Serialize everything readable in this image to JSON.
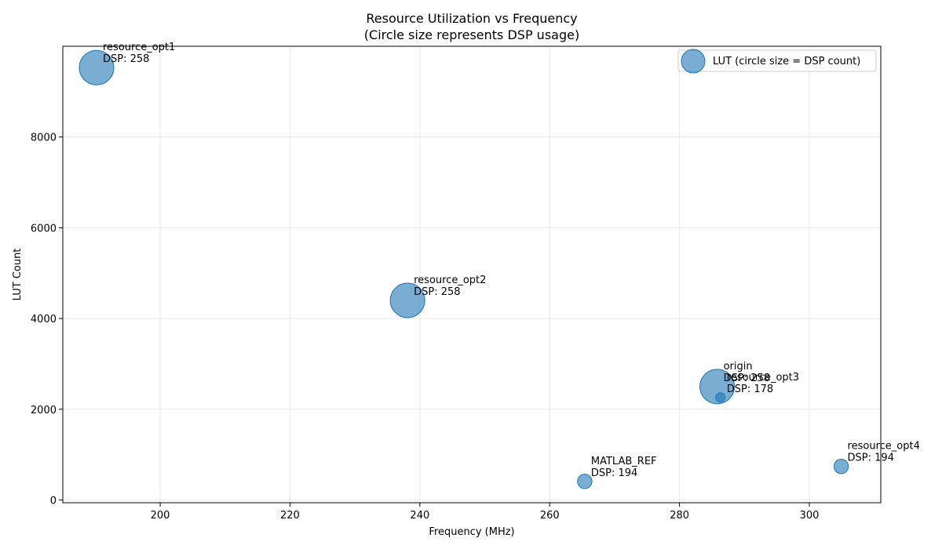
{
  "chart_data": {
    "type": "scatter",
    "title": "Resource Utilization vs Frequency",
    "subtitle": "(Circle size represents DSP usage)",
    "xlabel": "Frequency (MHz)",
    "ylabel": "LUT Count",
    "xlim": [
      185,
      311
    ],
    "ylim": [
      -60,
      10000
    ],
    "xticks": [
      200,
      220,
      240,
      260,
      280,
      300
    ],
    "yticks": [
      0,
      2000,
      4000,
      6000,
      8000
    ],
    "grid": true,
    "legend": {
      "label": "LUT (circle size = DSP count)",
      "placement": "top-right"
    },
    "points": [
      {
        "name": "resource_opt1",
        "x": 190.2,
        "y": 9530,
        "dsp": 258,
        "dsp_label": "DSP: 258"
      },
      {
        "name": "resource_opt2",
        "x": 238.1,
        "y": 4400,
        "dsp": 258,
        "dsp_label": "DSP: 258"
      },
      {
        "name": "origin",
        "x": 285.8,
        "y": 2500,
        "dsp": 258,
        "dsp_label": "DSP: 258"
      },
      {
        "name": "resource_opt3",
        "x": 286.3,
        "y": 2260,
        "dsp": 178,
        "dsp_label": "DSP: 178"
      },
      {
        "name": "MATLAB_REF",
        "x": 265.4,
        "y": 410,
        "dsp": 194,
        "dsp_label": "DSP: 194"
      },
      {
        "name": "resource_opt4",
        "x": 304.9,
        "y": 740,
        "dsp": 194,
        "dsp_label": "DSP: 194"
      }
    ]
  },
  "colors": {
    "bubble": "#1f77b4"
  }
}
